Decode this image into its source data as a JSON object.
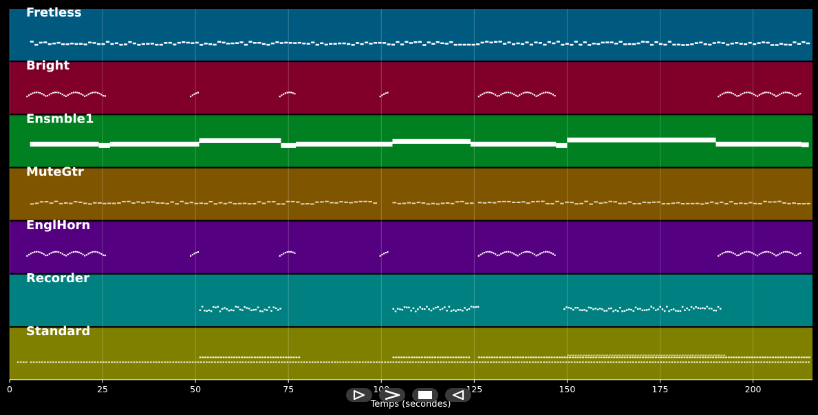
{
  "axis": {
    "xlabel": "Temps (secondes)",
    "xmin": 0,
    "xmax": 216,
    "ticks": [
      0,
      25,
      50,
      75,
      100,
      125,
      150,
      175,
      200
    ]
  },
  "tracks": [
    {
      "name": "Fretless",
      "color": "#005a80"
    },
    {
      "name": "Bright",
      "color": "#80002a"
    },
    {
      "name": "Ensmble1",
      "color": "#008020"
    },
    {
      "name": "MuteGtr",
      "color": "#805500"
    },
    {
      "name": "EnglHorn",
      "color": "#550080"
    },
    {
      "name": "Recorder",
      "color": "#008080"
    },
    {
      "name": "Standard",
      "color": "#808000"
    }
  ],
  "controls": [
    {
      "name": "play-button",
      "icon": "play-outline-icon"
    },
    {
      "name": "fast-forward-button",
      "icon": "chevron-right-icon"
    },
    {
      "name": "stop-button",
      "icon": "stop-square-icon"
    },
    {
      "name": "rewind-button",
      "icon": "play-reverse-outline-icon"
    }
  ]
}
